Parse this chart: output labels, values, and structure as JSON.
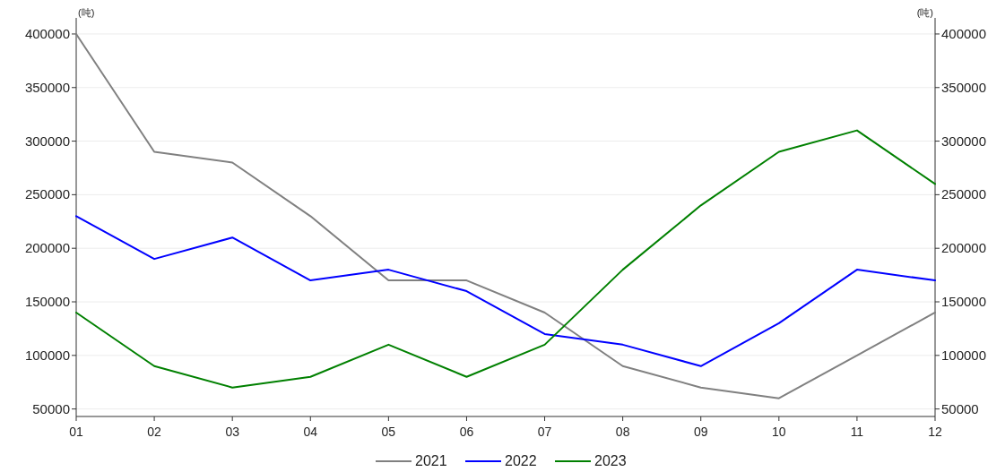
{
  "chart_data": {
    "type": "line",
    "categories": [
      "01",
      "02",
      "03",
      "04",
      "05",
      "06",
      "07",
      "08",
      "09",
      "10",
      "11",
      "12"
    ],
    "series": [
      {
        "name": "2021",
        "color": "#808080",
        "values": [
          400000,
          290000,
          280000,
          230000,
          170000,
          170000,
          140000,
          90000,
          70000,
          60000,
          100000,
          140000
        ]
      },
      {
        "name": "2022",
        "color": "#0000ff",
        "values": [
          230000,
          190000,
          210000,
          170000,
          180000,
          160000,
          120000,
          110000,
          90000,
          130000,
          180000,
          170000
        ]
      },
      {
        "name": "2023",
        "color": "#008000",
        "values": [
          140000,
          90000,
          70000,
          80000,
          110000,
          80000,
          110000,
          180000,
          240000,
          290000,
          310000,
          260000
        ]
      }
    ],
    "ylabel": "(吨)",
    "y2label": "(吨)",
    "ylim": [
      43000,
      415000
    ],
    "yticks": [
      50000,
      100000,
      150000,
      200000,
      250000,
      300000,
      350000,
      400000
    ],
    "y2lim": [
      43000,
      415000
    ],
    "y2ticks": [
      50000,
      100000,
      150000,
      200000,
      250000,
      300000,
      350000,
      400000
    ],
    "grid": "y",
    "legend": "bottom",
    "marker": "none",
    "line_style": "solid"
  }
}
